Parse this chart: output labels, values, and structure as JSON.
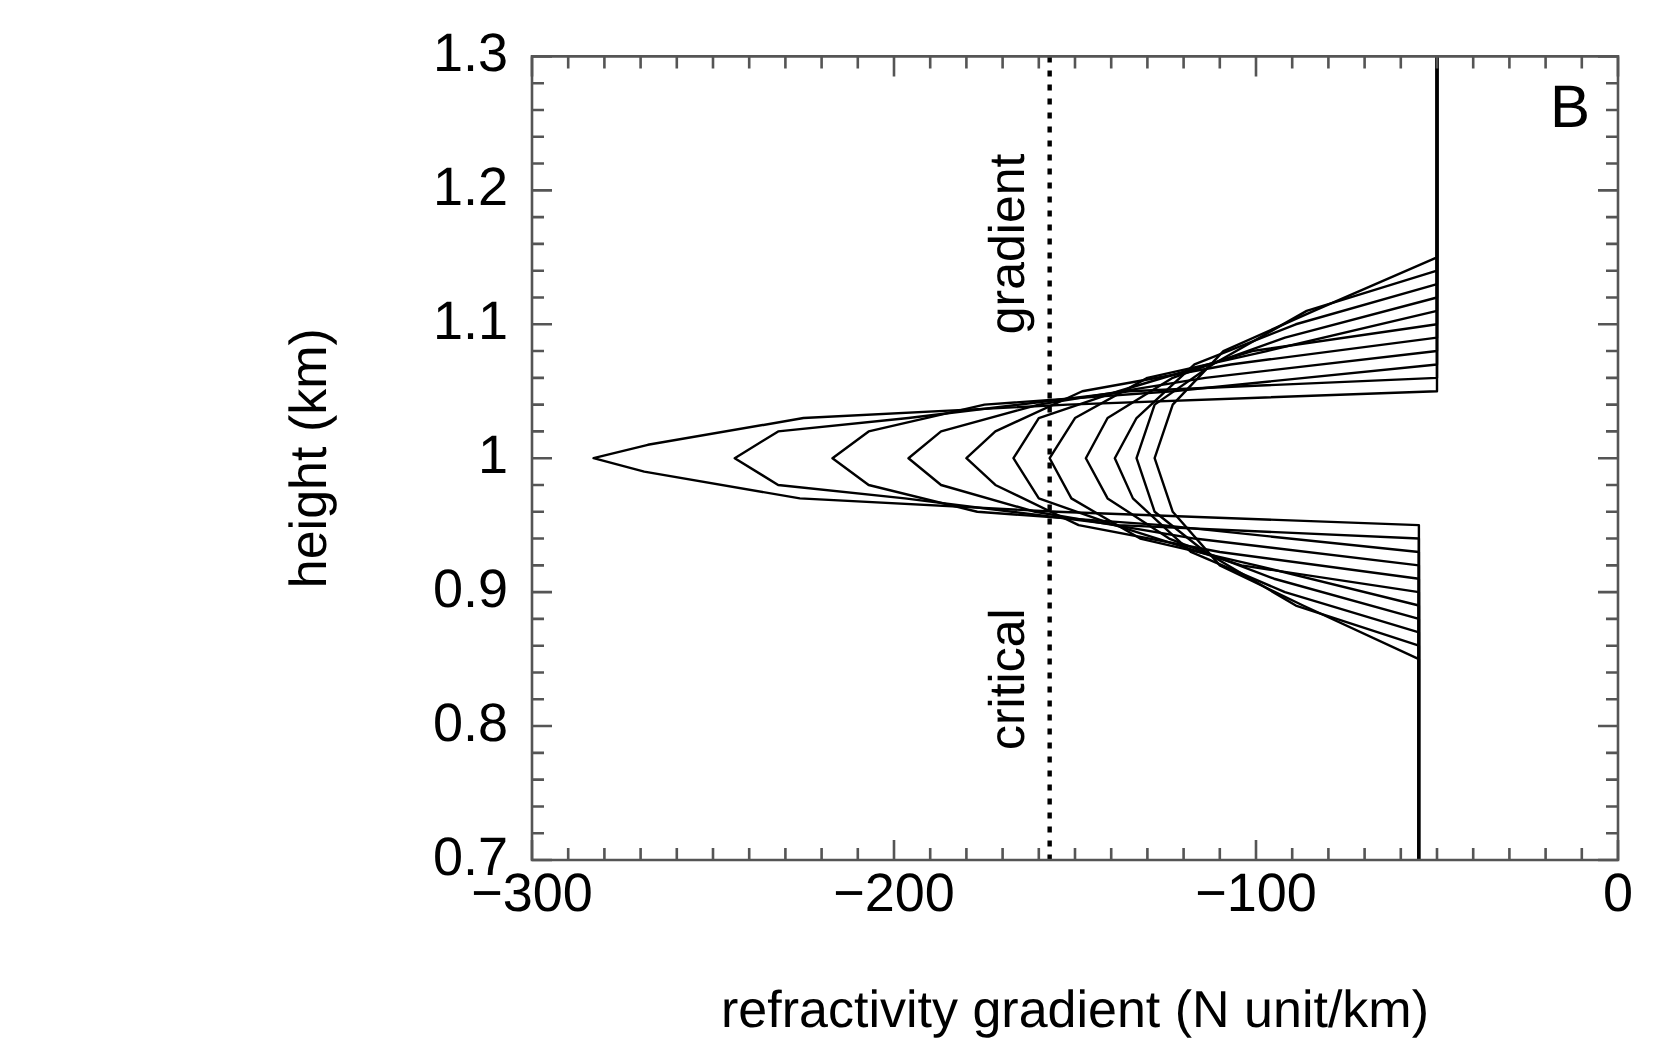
{
  "chart_data": {
    "type": "line",
    "xlabel": "refractivity gradient (N unit/km)",
    "ylabel": "height (km)",
    "xlim": [
      -300,
      0
    ],
    "ylim": [
      0.7,
      1.3
    ],
    "xticks": [
      -300,
      {
        "value": -290,
        "label": null
      },
      {
        "value": -280,
        "label": null
      },
      {
        "value": -270,
        "label": null
      },
      {
        "value": -260,
        "label": null
      },
      {
        "value": -250,
        "label": null
      },
      {
        "value": -240,
        "label": null
      },
      {
        "value": -230,
        "label": null
      },
      {
        "value": -220,
        "label": null
      },
      {
        "value": -210,
        "label": null
      },
      -200,
      {
        "value": -190,
        "label": null
      },
      {
        "value": -180,
        "label": null
      },
      {
        "value": -170,
        "label": null
      },
      {
        "value": -160,
        "label": null
      },
      {
        "value": -150,
        "label": null
      },
      {
        "value": -140,
        "label": null
      },
      {
        "value": -130,
        "label": null
      },
      {
        "value": -120,
        "label": null
      },
      {
        "value": -110,
        "label": null
      },
      -100,
      {
        "value": -90,
        "label": null
      },
      {
        "value": -80,
        "label": null
      },
      {
        "value": -70,
        "label": null
      },
      {
        "value": -60,
        "label": null
      },
      {
        "value": -50,
        "label": null
      },
      {
        "value": -40,
        "label": null
      },
      {
        "value": -30,
        "label": null
      },
      {
        "value": -20,
        "label": null
      },
      {
        "value": -10,
        "label": null
      },
      0
    ],
    "yticks": [
      0.7,
      {
        "value": 0.72,
        "label": null
      },
      {
        "value": 0.74,
        "label": null
      },
      {
        "value": 0.76,
        "label": null
      },
      {
        "value": 0.78,
        "label": null
      },
      0.8,
      {
        "value": 0.82,
        "label": null
      },
      {
        "value": 0.84,
        "label": null
      },
      {
        "value": 0.86,
        "label": null
      },
      {
        "value": 0.88,
        "label": null
      },
      0.9,
      {
        "value": 0.92,
        "label": null
      },
      {
        "value": 0.94,
        "label": null
      },
      {
        "value": 0.96,
        "label": null
      },
      {
        "value": 0.98,
        "label": null
      },
      1,
      {
        "value": 1.02,
        "label": null
      },
      {
        "value": 1.04,
        "label": null
      },
      {
        "value": 1.06,
        "label": null
      },
      {
        "value": 1.08,
        "label": null
      },
      1.1,
      {
        "value": 1.12,
        "label": null
      },
      {
        "value": 1.14,
        "label": null
      },
      {
        "value": 1.16,
        "label": null
      },
      {
        "value": 1.18,
        "label": null
      },
      1.2,
      {
        "value": 1.22,
        "label": null
      },
      {
        "value": 1.24,
        "label": null
      },
      {
        "value": 1.26,
        "label": null
      },
      {
        "value": 1.28,
        "label": null
      },
      1.3
    ],
    "grid": false,
    "legend": false,
    "marker": "none",
    "line_style": "solid",
    "ref_lines": [
      {
        "axis": "x",
        "value": -157,
        "line_style": "dotted",
        "color": "#000000"
      }
    ],
    "annotations": [
      "B",
      {
        "text": "critical",
        "x": -157,
        "y": 0.835
      },
      {
        "text": "gradient",
        "x": -157,
        "y": 1.16
      }
    ],
    "series": [
      {
        "color": "#000000",
        "x": [
          -55,
          -55,
          -155,
          -226,
          -269,
          -283,
          -268,
          -225,
          -152,
          -50,
          -50
        ],
        "values": [
          0.7,
          0.95,
          0.96,
          0.97,
          0.99,
          1,
          1.01,
          1.03,
          1.04,
          1.05,
          1.3
        ]
      },
      {
        "color": "#000000",
        "x": [
          -55,
          -55,
          -138,
          -197,
          -232,
          -244,
          -232,
          -196,
          -135,
          -50,
          -50
        ],
        "values": [
          0.7,
          0.94,
          0.95,
          0.97,
          0.98,
          1,
          1.02,
          1.03,
          1.05,
          1.06,
          1.3
        ]
      },
      {
        "color": "#000000",
        "x": [
          -55,
          -55,
          -126,
          -177,
          -207,
          -217,
          -207,
          -175,
          -123,
          -50,
          -50
        ],
        "values": [
          0.7,
          0.93,
          0.95,
          0.96,
          0.98,
          1,
          1.02,
          1.04,
          1.05,
          1.07,
          1.3
        ]
      },
      {
        "color": "#000000",
        "x": [
          -55,
          -55,
          -117,
          -161,
          -187,
          -196,
          -187,
          -160,
          -114,
          -50,
          -50
        ],
        "values": [
          0.7,
          0.92,
          0.94,
          0.96,
          0.98,
          1,
          1.02,
          1.04,
          1.06,
          1.08,
          1.3
        ]
      },
      {
        "color": "#000000",
        "x": [
          -55,
          -55,
          -110,
          -149,
          -172,
          -180,
          -172,
          -148,
          -107,
          -50,
          -50
        ],
        "values": [
          0.7,
          0.91,
          0.93,
          0.95,
          0.98,
          1,
          1.02,
          1.05,
          1.07,
          1.09,
          1.3
        ]
      },
      {
        "color": "#000000",
        "x": [
          -55,
          -55,
          -104,
          -139,
          -160,
          -167,
          -160,
          -138,
          -101,
          -50,
          -50
        ],
        "values": [
          0.7,
          0.9,
          0.92,
          0.95,
          0.97,
          1,
          1.03,
          1.05,
          1.08,
          1.1,
          1.3
        ]
      },
      {
        "color": "#000000",
        "x": [
          -55,
          -55,
          -100,
          -132,
          -151,
          -157,
          -150,
          -130,
          -97,
          -50,
          -50
        ],
        "values": [
          0.7,
          0.89,
          0.92,
          0.94,
          0.97,
          1,
          1.03,
          1.06,
          1.08,
          1.11,
          1.3
        ]
      },
      {
        "color": "#000000",
        "x": [
          -55,
          -55,
          -95,
          -124,
          -141,
          -147,
          -141,
          -123,
          -92,
          -50,
          -50
        ],
        "values": [
          0.7,
          0.88,
          0.91,
          0.94,
          0.97,
          1,
          1.03,
          1.06,
          1.09,
          1.12,
          1.3
        ]
      },
      {
        "color": "#000000",
        "x": [
          -55,
          -55,
          -92,
          -118,
          -134,
          -139,
          -133,
          -117,
          -89,
          -50,
          -50
        ],
        "values": [
          0.7,
          0.87,
          0.9,
          0.93,
          0.97,
          1,
          1.03,
          1.07,
          1.1,
          1.13,
          1.3
        ]
      },
      {
        "color": "#000000",
        "x": [
          -55,
          -55,
          -89,
          -114,
          -128,
          -133,
          -128,
          -112,
          -86,
          -50,
          -50
        ],
        "values": [
          0.7,
          0.86,
          0.89,
          0.93,
          0.96,
          1,
          1.04,
          1.07,
          1.11,
          1.14,
          1.3
        ]
      },
      {
        "color": "#000000",
        "x": [
          -55,
          -55,
          -87,
          -110,
          -123,
          -128,
          -123,
          -109,
          -84,
          -50,
          -50
        ],
        "values": [
          0.7,
          0.85,
          0.89,
          0.92,
          0.96,
          1,
          1.04,
          1.08,
          1.11,
          1.15,
          1.3
        ]
      }
    ]
  }
}
